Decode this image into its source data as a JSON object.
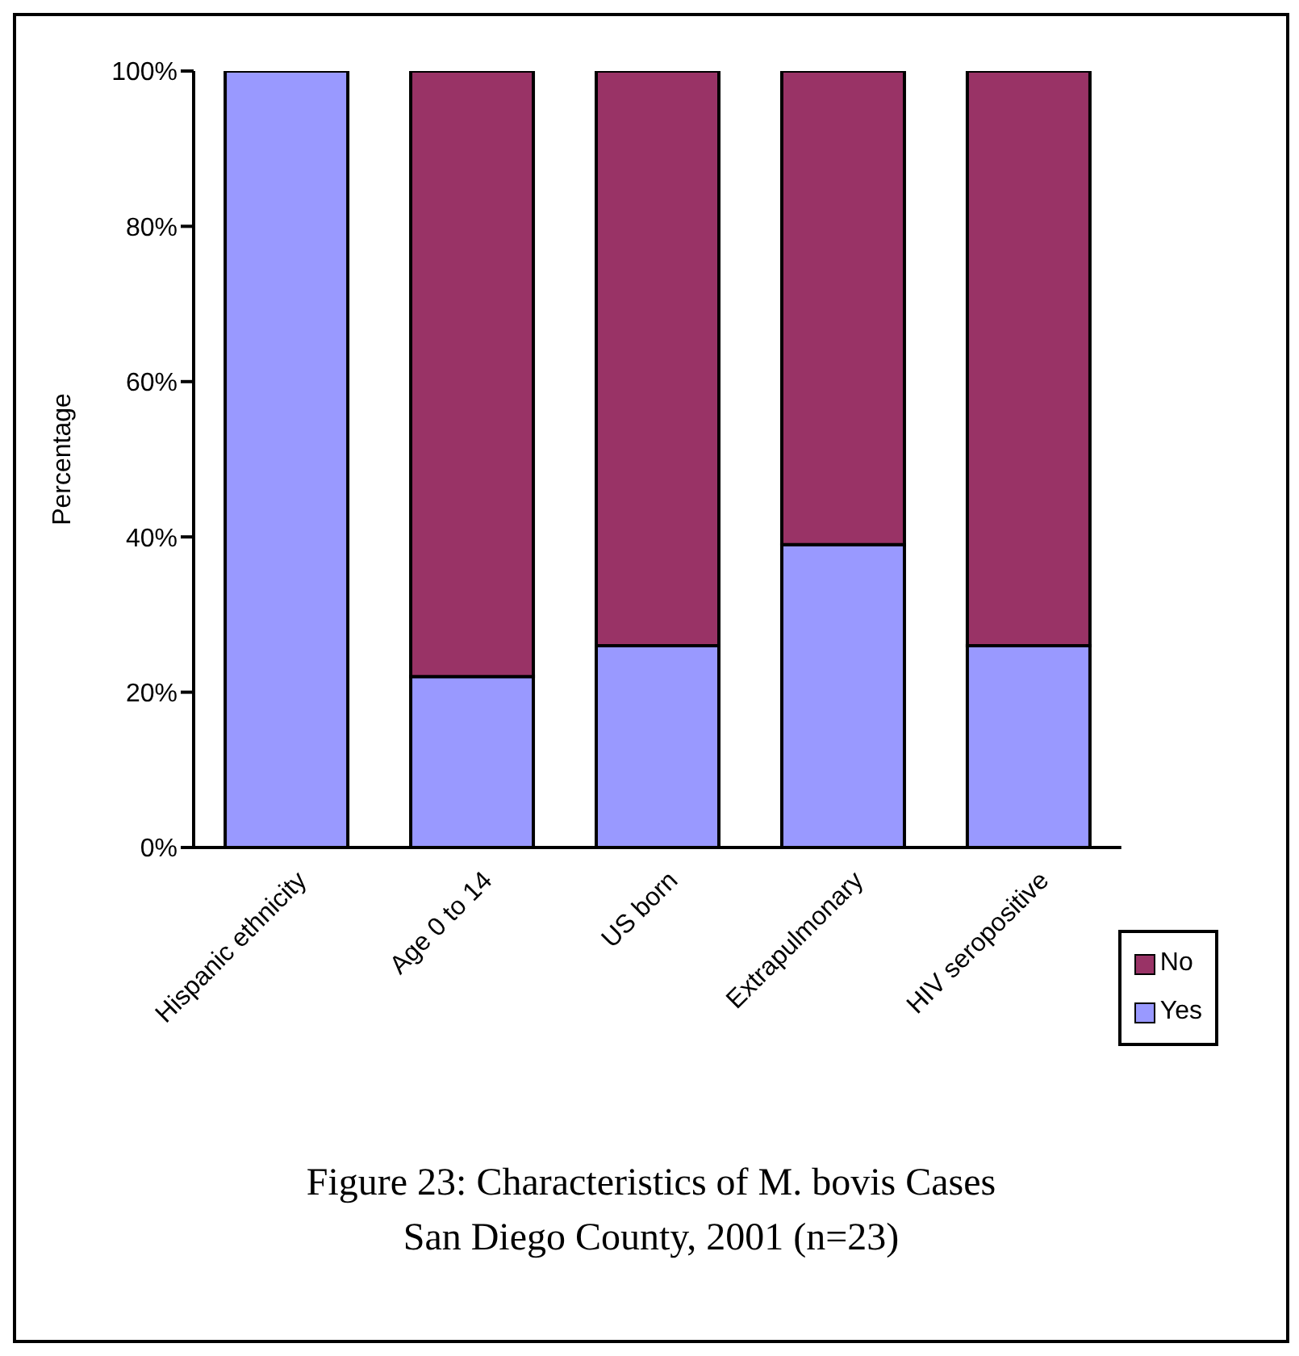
{
  "chart_data": {
    "type": "bar",
    "stacked": true,
    "title": "Figure 23: Characteristics of M. bovis Cases",
    "subtitle": "San Diego County, 2001 (n=23)",
    "ylabel": "Percentage",
    "categories": [
      "Hispanic ethnicity",
      "Age 0 to 14",
      "US born",
      "Extrapulmonary",
      "HIV seropositive"
    ],
    "series": [
      {
        "name": "Yes",
        "color": "#9999ff",
        "values": [
          100,
          22,
          26,
          39,
          26
        ]
      },
      {
        "name": "No",
        "color": "#993366",
        "values": [
          0,
          78,
          74,
          61,
          74
        ]
      }
    ],
    "ylim": [
      0,
      100
    ],
    "yticks": [
      {
        "value": 0,
        "label": "0%"
      },
      {
        "value": 20,
        "label": "20%"
      },
      {
        "value": 40,
        "label": "40%"
      },
      {
        "value": 60,
        "label": "60%"
      },
      {
        "value": 80,
        "label": "80%"
      },
      {
        "value": 100,
        "label": "100%"
      }
    ],
    "grid": false,
    "legend": "bottom right"
  }
}
